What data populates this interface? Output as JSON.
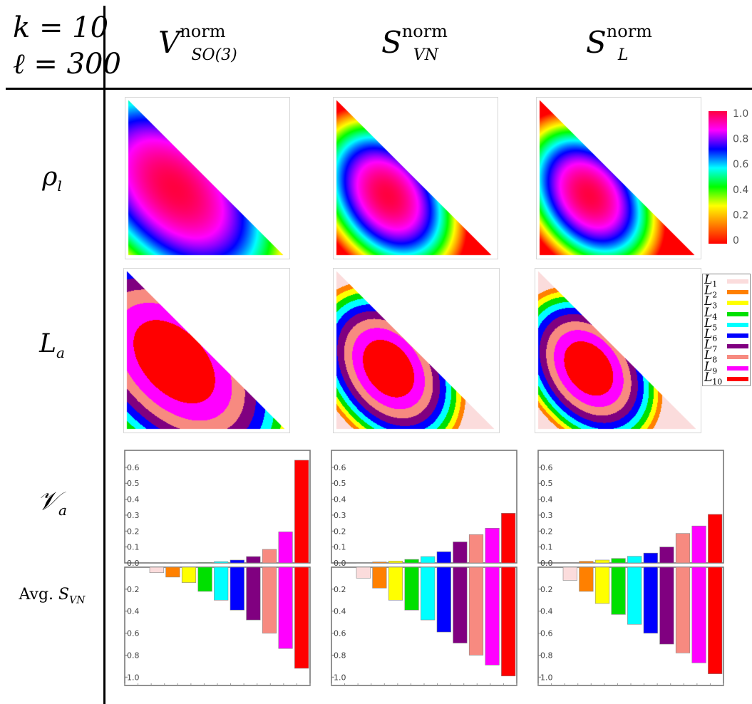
{
  "header": {
    "corner_line1": "k = 10",
    "corner_line2": "ℓ = 300",
    "columns": [
      {
        "base": "V",
        "sub": "SO(3)",
        "sup": "norm"
      },
      {
        "base": "S",
        "sub": "VN",
        "sup": "norm"
      },
      {
        "base": "S",
        "sub": "L",
        "sup": "norm"
      }
    ]
  },
  "rows": {
    "rho": {
      "base": "ρ",
      "sub": "l"
    },
    "L": {
      "base": "L",
      "sub": "a"
    },
    "V": {
      "base": "𝒱",
      "sub": "a"
    },
    "avg": {
      "prefix": "Avg. ",
      "base": "S",
      "sub": "VN"
    }
  },
  "colorbar": {
    "ticks": [
      "1.0",
      "0.8",
      "0.6",
      "0.4",
      "0.2",
      "0"
    ],
    "range": [
      0,
      1
    ],
    "colors": [
      "#ff0000",
      "#ff8000",
      "#ffff00",
      "#00ff00",
      "#00ffff",
      "#0000ff",
      "#ff00ff",
      "#ff0040"
    ]
  },
  "legend": {
    "items": [
      {
        "base": "L",
        "sub": "1",
        "color": "#fbdcdc"
      },
      {
        "base": "L",
        "sub": "2",
        "color": "#ff8000"
      },
      {
        "base": "L",
        "sub": "3",
        "color": "#ffff00"
      },
      {
        "base": "L",
        "sub": "4",
        "color": "#00e000"
      },
      {
        "base": "L",
        "sub": "5",
        "color": "#00ffff"
      },
      {
        "base": "L",
        "sub": "6",
        "color": "#0000ff"
      },
      {
        "base": "L",
        "sub": "7",
        "color": "#800080"
      },
      {
        "base": "L",
        "sub": "8",
        "color": "#f78a80"
      },
      {
        "base": "L",
        "sub": "9",
        "color": "#ff00ff"
      },
      {
        "base": "L",
        "sub": "10",
        "color": "#ff0000"
      }
    ]
  },
  "chart_data": [
    {
      "type": "bar",
      "panel": "V_a / Avg S_VN",
      "column": "V_SO(3)^norm",
      "categories": [
        "L1",
        "L2",
        "L3",
        "L4",
        "L5",
        "L6",
        "L7",
        "L8",
        "L9",
        "L10"
      ],
      "series": [
        {
          "values": [
            0.0,
            0.0,
            0.001,
            0.003,
            0.008,
            0.018,
            0.04,
            0.085,
            0.195,
            0.645
          ]
        },
        {
          "values": [
            0.05,
            0.09,
            0.14,
            0.22,
            0.3,
            0.39,
            0.48,
            0.6,
            0.74,
            0.92
          ]
        }
      ],
      "top_ylim": [
        0,
        0.68
      ],
      "top_ticks": [
        "0.6",
        "0.5",
        "0.4",
        "0.3",
        "0.2",
        "0.1",
        "0.0"
      ],
      "bottom_ylim": [
        0,
        1.05
      ],
      "bottom_ticks": [
        "0.2",
        "0.4",
        "0.6",
        "0.8",
        "1.0"
      ]
    },
    {
      "type": "bar",
      "panel": "V_a / Avg S_VN",
      "column": "S_VN^norm",
      "categories": [
        "L1",
        "L2",
        "L3",
        "L4",
        "L5",
        "L6",
        "L7",
        "L8",
        "L9",
        "L10"
      ],
      "series": [
        {
          "values": [
            0.002,
            0.006,
            0.012,
            0.022,
            0.04,
            0.07,
            0.132,
            0.178,
            0.218,
            0.312
          ]
        },
        {
          "values": [
            0.1,
            0.19,
            0.3,
            0.39,
            0.48,
            0.59,
            0.69,
            0.8,
            0.89,
            0.99
          ]
        }
      ],
      "top_ylim": [
        0,
        0.68
      ],
      "top_ticks": [
        "0.6",
        "0.5",
        "0.4",
        "0.3",
        "0.2",
        "0.1",
        "0.0"
      ],
      "bottom_ylim": [
        0,
        1.05
      ],
      "bottom_ticks": [
        "0.2",
        "0.4",
        "0.6",
        "0.8",
        "1.0"
      ]
    },
    {
      "type": "bar",
      "panel": "V_a / Avg S_VN",
      "column": "S_L^norm",
      "categories": [
        "L1",
        "L2",
        "L3",
        "L4",
        "L5",
        "L6",
        "L7",
        "L8",
        "L9",
        "L10"
      ],
      "series": [
        {
          "values": [
            0.003,
            0.01,
            0.018,
            0.028,
            0.042,
            0.062,
            0.1,
            0.185,
            0.232,
            0.305
          ]
        },
        {
          "values": [
            0.12,
            0.22,
            0.33,
            0.43,
            0.52,
            0.6,
            0.7,
            0.78,
            0.87,
            0.97
          ]
        }
      ],
      "top_ylim": [
        0,
        0.68
      ],
      "top_ticks": [
        "0.6",
        "0.5",
        "0.4",
        "0.3",
        "0.2",
        "0.1",
        "0.0"
      ],
      "bottom_ylim": [
        0,
        1.05
      ],
      "bottom_ticks": [
        "0.2",
        "0.4",
        "0.6",
        "0.8",
        "1.0"
      ]
    }
  ]
}
